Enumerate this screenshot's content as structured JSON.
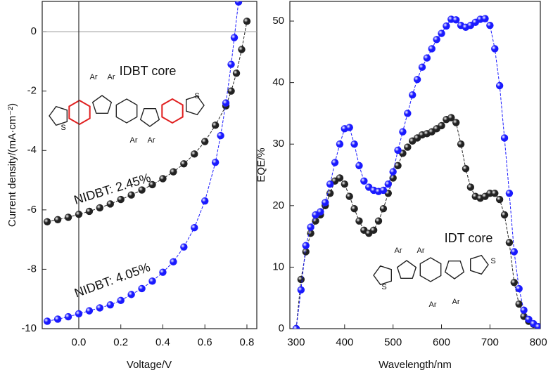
{
  "chart_data": [
    {
      "type": "line",
      "xlabel": "Voltage/V",
      "ylabel": "Current density/(mA·cm⁻²)",
      "xlim": [
        -0.174,
        0.847
      ],
      "ylim": [
        -10,
        1.02
      ],
      "xticks": [
        {
          "value": 0,
          "label": "0.0"
        },
        0.2,
        0.4,
        0.6,
        0.8
      ],
      "yticks": [
        0,
        -2,
        -4,
        -6,
        -8,
        -10
      ],
      "zero_lines": true,
      "annotations": [
        "IDBT core",
        "NIDBT: 2.45%",
        "NIDBT: 4.05%"
      ],
      "molecule_labels": [
        "Ar",
        "Ar",
        "Ar",
        "Ar",
        "S",
        "S"
      ],
      "series": [
        {
          "color": "#222222",
          "x": [
            -0.15,
            -0.1,
            -0.05,
            0,
            0.05,
            0.1,
            0.15,
            0.2,
            0.25,
            0.3,
            0.35,
            0.4,
            0.45,
            0.5,
            0.55,
            0.6,
            0.65,
            0.7,
            0.725,
            0.75,
            0.775,
            0.8
          ],
          "values": [
            -6.4,
            -6.33,
            -6.25,
            -6.15,
            -6.05,
            -5.93,
            -5.8,
            -5.65,
            -5.5,
            -5.33,
            -5.15,
            -4.95,
            -4.72,
            -4.45,
            -4.12,
            -3.7,
            -3.15,
            -2.5,
            -2.0,
            -1.4,
            -0.6,
            0.35
          ]
        },
        {
          "color": "#1a1aff",
          "x": [
            -0.15,
            -0.1,
            -0.05,
            0,
            0.05,
            0.1,
            0.15,
            0.2,
            0.25,
            0.3,
            0.35,
            0.4,
            0.45,
            0.5,
            0.55,
            0.6,
            0.65,
            0.675,
            0.7,
            0.725,
            0.74,
            0.76
          ],
          "values": [
            -9.75,
            -9.68,
            -9.6,
            -9.5,
            -9.4,
            -9.3,
            -9.2,
            -9.05,
            -8.85,
            -8.65,
            -8.4,
            -8.1,
            -7.75,
            -7.25,
            -6.6,
            -5.7,
            -4.4,
            -3.5,
            -2.4,
            -1.1,
            -0.2,
            1.0
          ]
        }
      ]
    },
    {
      "type": "line",
      "xlabel": "Wavelength/nm",
      "ylabel": "EQE/%",
      "xlim": [
        287,
        804
      ],
      "ylim": [
        0,
        53.2
      ],
      "xticks": [
        300,
        400,
        500,
        600,
        700,
        800
      ],
      "yticks": [
        0,
        10,
        20,
        30,
        40,
        50
      ],
      "annotations": [
        "IDT core"
      ],
      "molecule_labels": [
        "Ar",
        "Ar",
        "Ar",
        "Ar",
        "S",
        "S"
      ],
      "x": [
        300,
        310,
        320,
        330,
        340,
        350,
        360,
        370,
        380,
        390,
        400,
        410,
        420,
        430,
        440,
        450,
        460,
        470,
        480,
        490,
        500,
        510,
        520,
        530,
        540,
        550,
        560,
        570,
        580,
        590,
        600,
        610,
        620,
        630,
        640,
        650,
        660,
        670,
        680,
        690,
        700,
        710,
        720,
        730,
        740,
        750,
        760,
        770,
        780,
        790,
        800
      ],
      "series": [
        {
          "color": "#222222",
          "values": [
            0,
            8,
            12.5,
            15.5,
            17.5,
            18.5,
            20,
            22,
            24,
            24.5,
            23.5,
            21.5,
            19.5,
            17.5,
            16,
            15.5,
            16,
            17.5,
            19.5,
            22,
            24.5,
            26.5,
            28.5,
            29.5,
            30.5,
            31,
            31.5,
            31.7,
            32,
            32.5,
            33,
            34,
            34.3,
            33.5,
            30,
            26,
            23,
            21.5,
            21.2,
            21.5,
            22,
            22,
            21,
            18.5,
            14,
            7.5,
            4,
            2,
            1.2,
            0.7,
            0.3
          ]
        },
        {
          "color": "#1a1aff",
          "values": [
            0,
            6.3,
            13.5,
            16.5,
            18.5,
            19,
            20.5,
            23.5,
            27,
            30,
            32.5,
            32.7,
            30,
            26.5,
            24,
            23,
            22.5,
            22.3,
            22.5,
            23.5,
            25.5,
            29,
            32,
            35,
            38,
            40.5,
            42.5,
            44,
            45.5,
            47,
            48,
            49.2,
            50.3,
            50.2,
            49.3,
            49,
            49.3,
            49.8,
            50.3,
            50.4,
            49.3,
            45.5,
            39.5,
            31,
            22,
            12.5,
            6.5,
            3,
            1.5,
            0.8,
            0.3
          ]
        }
      ]
    }
  ]
}
